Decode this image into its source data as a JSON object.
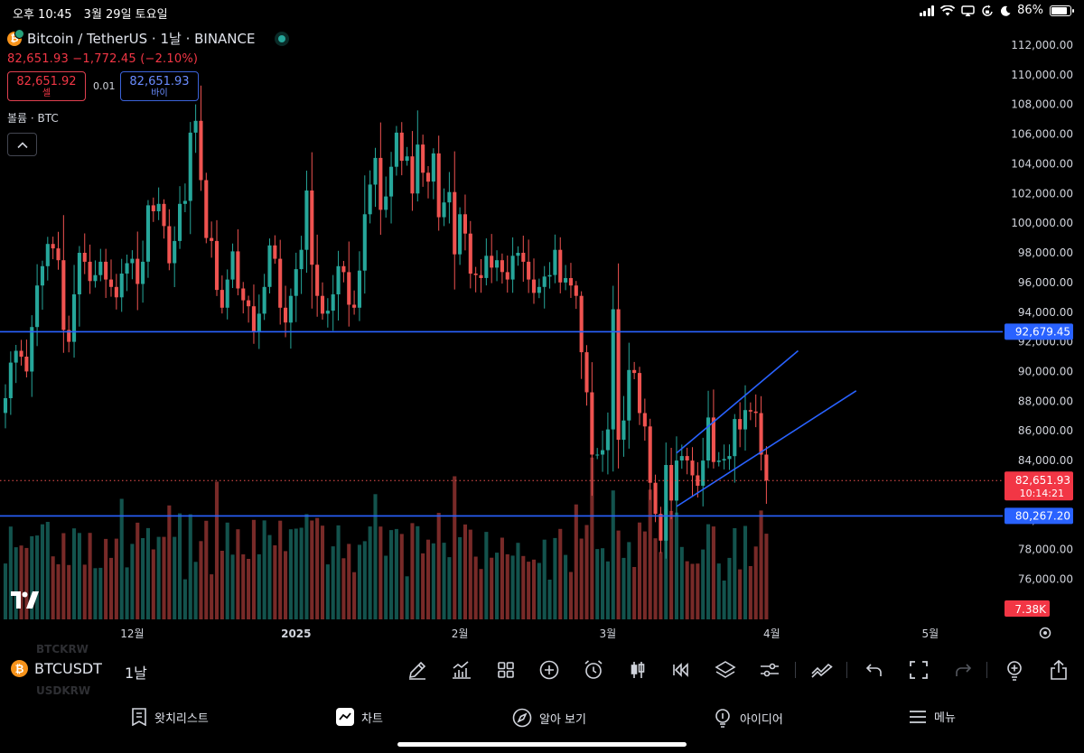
{
  "status_bar": {
    "time": "오후 10:45",
    "date": "3월 29일 토요일",
    "battery": "86%"
  },
  "header": {
    "symbol": "Bitcoin / TetherUS · 1날 · BINANCE",
    "price_change": "82,651.93 −1,772.45 (−2.10%)",
    "sell_price": "82,651.92",
    "sell_label": "셀",
    "spread": "0.01",
    "buy_price": "82,651.93",
    "buy_label": "바이",
    "volume_label": "볼륨 · BTC"
  },
  "colors": {
    "up": "#26a69a",
    "down": "#ef5350",
    "level_line": "#2962ff",
    "current_label": "#f23645",
    "level_label": "#2962ff"
  },
  "chart_data": {
    "type": "candlestick",
    "symbol": "BTCUSDT",
    "interval": "1날",
    "ylim": [
      74000,
      113000
    ],
    "y_ticks": [
      76000,
      78000,
      80000,
      82000,
      84000,
      86000,
      88000,
      90000,
      92000,
      94000,
      96000,
      98000,
      100000,
      102000,
      104000,
      106000,
      108000,
      110000,
      112000
    ],
    "y_tick_labels": [
      "76,000.00",
      "78,000.00",
      "80,000.00",
      "82,000.00",
      "84,000.00",
      "86,000.00",
      "88,000.00",
      "90,000.00",
      "92,000.00",
      "94,000.00",
      "96,000.00",
      "98,000.00",
      "100,000.00",
      "102,000.00",
      "104,000.00",
      "106,000.00",
      "108,000.00",
      "110,000.00",
      "112,000.00"
    ],
    "x_labels": [
      {
        "label": "12월",
        "index": 24
      },
      {
        "label": "2025",
        "index": 55
      },
      {
        "label": "2월",
        "index": 86
      },
      {
        "label": "3월",
        "index": 114
      },
      {
        "label": "4월",
        "index": 145
      },
      {
        "label": "5월",
        "index": 175
      }
    ],
    "closes": [
      88200,
      90600,
      91400,
      91000,
      90000,
      93000,
      95800,
      97100,
      98600,
      98300,
      97500,
      92800,
      92000,
      95200,
      98000,
      97400,
      96100,
      96500,
      97400,
      96200,
      95700,
      95000,
      96600,
      97300,
      97600,
      95900,
      97400,
      101200,
      100800,
      101300,
      99800,
      97300,
      98800,
      101300,
      101500,
      106100,
      106900,
      102900,
      99000,
      98800,
      95500,
      94300,
      96200,
      98100,
      95600,
      94800,
      94400,
      92700,
      93900,
      95700,
      98500,
      97600,
      94300,
      93300,
      95100,
      96900,
      98200,
      102200,
      97200,
      95100,
      93900,
      94100,
      95200,
      97100,
      96700,
      94500,
      94300,
      96800,
      100600,
      102600,
      104400,
      100900,
      101800,
      103800,
      106100,
      104200,
      104500,
      102000,
      105300,
      103400,
      102800,
      104700,
      100400,
      101400,
      102100,
      97900,
      100600,
      99300,
      96600,
      96500,
      96300,
      97800,
      97000,
      97500,
      96700,
      96200,
      97800,
      98000,
      97400,
      96200,
      95300,
      95700,
      96400,
      96500,
      98200,
      96000,
      96300,
      95800,
      95100,
      91300,
      88600,
      84400,
      84400,
      84700,
      86100,
      94200,
      85400,
      86700,
      90100,
      89900,
      87200,
      86300,
      82500,
      80400,
      78600,
      83700,
      81300,
      84000,
      84300,
      84000,
      83000,
      82300,
      84000,
      86900,
      83900,
      84000,
      84100,
      84300,
      86800,
      86100,
      87400,
      87300,
      87200,
      84400,
      82651.93
    ],
    "volume_ylim": [
      0,
      60
    ],
    "volume_labels": [],
    "current_price": 82651.93,
    "current_price_label": "82,651.93",
    "countdown": "10:14:21",
    "volume_value_label": "7.38K",
    "levels": [
      {
        "value": 92679.45,
        "label": "92,679.45"
      },
      {
        "value": 80267.2,
        "label": "80,267.20"
      }
    ],
    "channel": {
      "upper": {
        "from": {
          "index": 127,
          "value": 84500
        },
        "to": {
          "index": 150,
          "value": 91400
        }
      },
      "lower": {
        "from": {
          "index": 127,
          "value": 80900
        },
        "to": {
          "index": 161,
          "value": 88700
        }
      }
    }
  },
  "toolbar": {
    "symbol": "BTCUSDT",
    "interval": "1날",
    "ghost_above": "BTCKRW",
    "ghost_below": "USDKRW"
  },
  "icons": [
    "pencil-icon",
    "indicators-icon",
    "layouts-icon",
    "plus-icon",
    "alarm-icon",
    "candle-icon",
    "replay-icon",
    "layers-icon",
    "settings-icon",
    "trend-icon",
    "undo-icon",
    "fullscreen-icon",
    "redo-icon",
    "idea-icon",
    "share-icon"
  ],
  "bottom_nav": {
    "watchlist": "왓치리스트",
    "chart": "차트",
    "explore": "알아 보기",
    "ideas": "아이디어",
    "menu": "메뉴"
  }
}
